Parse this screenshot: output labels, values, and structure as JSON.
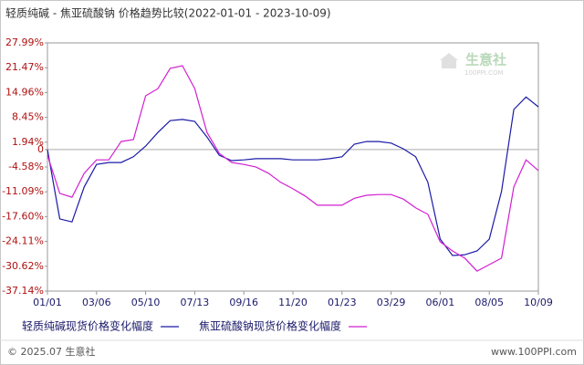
{
  "chart_data": {
    "type": "line",
    "title": "轻质纯碱 - 焦亚硫酸钠 价格趋势比较(2022-01-01 - 2023-10-09)",
    "categories": [
      "01/01",
      null,
      null,
      null,
      "03/06",
      null,
      null,
      null,
      "05/10",
      null,
      null,
      null,
      "07/13",
      null,
      null,
      null,
      "09/16",
      null,
      null,
      null,
      "11/20",
      null,
      null,
      null,
      "01/23",
      null,
      null,
      null,
      "03/29",
      null,
      null,
      null,
      "06/01",
      null,
      null,
      null,
      "08/05",
      null,
      null,
      null,
      "10/09"
    ],
    "series": [
      {
        "name": "轻质纯碱现货价格变化幅度",
        "color": "#1a1aa6",
        "values": [
          0,
          -18.2,
          -19,
          -9.8,
          -3.9,
          -3.4,
          -3.4,
          -1.9,
          0.9,
          4.5,
          7.6,
          7.9,
          7.4,
          3.3,
          -1.5,
          -2.9,
          -2.7,
          -2.4,
          -2.4,
          -2.4,
          -2.7,
          -2.7,
          -2.7,
          -2.4,
          -1.9,
          1.4,
          2.1,
          2.1,
          1.7,
          0.2,
          -1.9,
          -8.6,
          -23.5,
          -27.8,
          -27.6,
          -26.6,
          -23.5,
          -11.0,
          10.5,
          13.8,
          11.2
        ]
      },
      {
        "name": "焦亚硫酸钠现货价格变化幅度",
        "color": "#d21fd2",
        "values": [
          -1.5,
          -11.5,
          -12.5,
          -6.2,
          -2.7,
          -2.7,
          2.1,
          2.6,
          14.1,
          16.0,
          21.3,
          22.0,
          16.0,
          4.5,
          -1.0,
          -3.4,
          -3.9,
          -4.6,
          -6.2,
          -8.6,
          -10.3,
          -12.2,
          -14.6,
          -14.6,
          -14.6,
          -12.8,
          -12.0,
          -11.8,
          -11.8,
          -13.0,
          -15.3,
          -17.0,
          -24.2,
          -26.6,
          -28.5,
          -31.9,
          -30.2,
          -28.5,
          -9.8,
          -2.7,
          -5.5
        ]
      }
    ],
    "ylim": [
      -37.14,
      27.99
    ],
    "yticks": [
      {
        "value": 27.99,
        "label": "27.99%"
      },
      {
        "value": 21.47,
        "label": "21.47%"
      },
      {
        "value": 14.96,
        "label": "14.96%"
      },
      {
        "value": 8.45,
        "label": "8.45%"
      },
      {
        "value": 1.94,
        "label": "1.94%"
      },
      0,
      {
        "value": -4.58,
        "label": "-4.58%"
      },
      {
        "value": -11.09,
        "label": "-11.09%"
      },
      {
        "value": -17.6,
        "label": "-17.60%"
      },
      {
        "value": -24.11,
        "label": "-24.11%"
      },
      {
        "value": -30.62,
        "label": "-30.62%"
      },
      {
        "value": -37.14,
        "label": "-37.14%"
      }
    ],
    "grid": false,
    "zero_line": true,
    "legend": "bottom",
    "watermark": {
      "name": "生意社",
      "site": "100PPI.COM"
    },
    "footer": {
      "left": "© 2025.07 生意社",
      "right": "www.100PPI.com"
    }
  }
}
